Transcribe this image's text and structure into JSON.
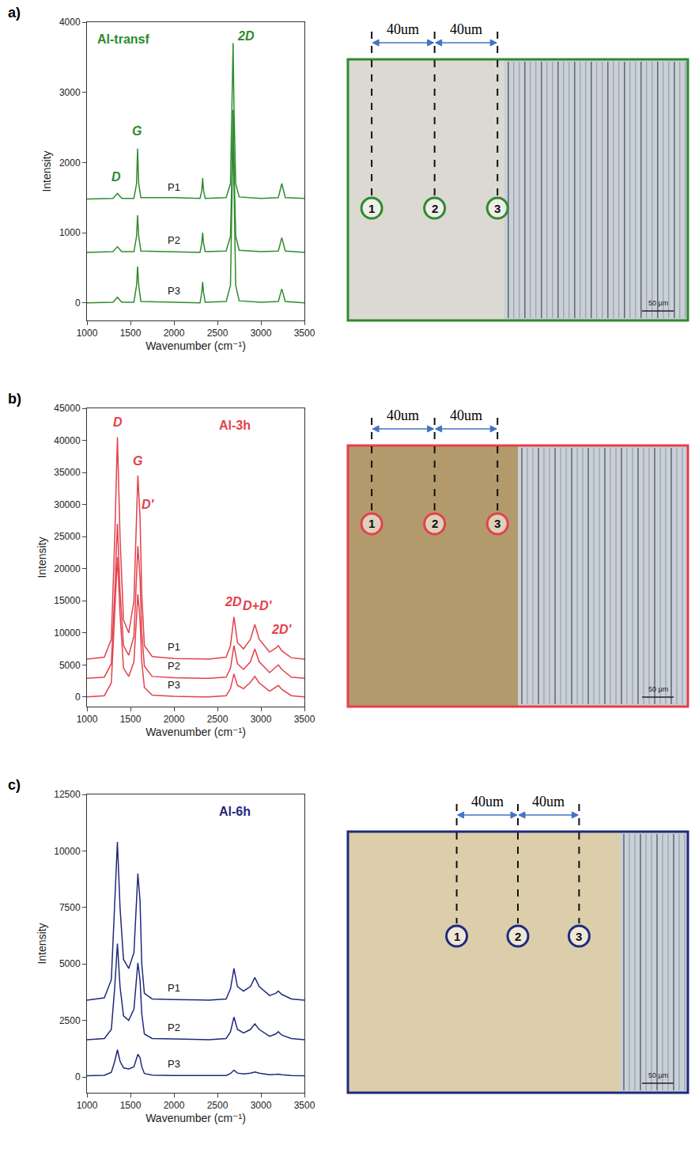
{
  "chart_data": [
    {
      "type": "line",
      "panel": "a)",
      "title": "Al-transf",
      "color": "#2e8b2e",
      "x_label": "Wavenumber (cm⁻¹)",
      "y_label": "Intensity",
      "xlim": [
        1000,
        3500
      ],
      "xticks": [
        1000,
        1500,
        2000,
        2500,
        3000,
        3500
      ],
      "ylim": [
        -250,
        4000
      ],
      "yticks": [
        0,
        1000,
        2000,
        3000,
        4000
      ],
      "x": [
        1000,
        1300,
        1350,
        1400,
        1540,
        1570,
        1582,
        1595,
        1620,
        2000,
        2300,
        2320,
        2330,
        2340,
        2360,
        2600,
        2650,
        2670,
        2680,
        2690,
        2710,
        2750,
        3000,
        3200,
        3240,
        3280,
        3500
      ],
      "series": [
        {
          "name": "P1",
          "values": [
            1480,
            1490,
            1560,
            1490,
            1490,
            1700,
            2200,
            1700,
            1500,
            1500,
            1490,
            1600,
            1780,
            1600,
            1490,
            1500,
            1700,
            2800,
            3700,
            2800,
            1700,
            1510,
            1490,
            1500,
            1700,
            1500,
            1490
          ]
        },
        {
          "name": "P2",
          "values": [
            720,
            730,
            800,
            730,
            730,
            950,
            1250,
            950,
            740,
            730,
            720,
            850,
            1000,
            850,
            730,
            740,
            950,
            2000,
            2750,
            2000,
            950,
            750,
            730,
            740,
            930,
            740,
            720
          ]
        },
        {
          "name": "P3",
          "values": [
            0,
            10,
            80,
            10,
            10,
            250,
            520,
            250,
            20,
            10,
            0,
            150,
            300,
            150,
            10,
            20,
            250,
            1700,
            2650,
            1700,
            250,
            30,
            10,
            20,
            200,
            20,
            0
          ]
        }
      ],
      "annotations": [
        {
          "text": "D",
          "x": 1340,
          "y": 1800
        },
        {
          "text": "G",
          "x": 1570,
          "y": 2450
        },
        {
          "text": "2D",
          "x": 2830,
          "y": 3800
        }
      ],
      "micrograph": {
        "spacing_labels": [
          "40um",
          "40um"
        ],
        "points": [
          "1",
          "2",
          "3"
        ],
        "scale_bar": "50 µm"
      }
    },
    {
      "type": "line",
      "panel": "b)",
      "title": "Al-3h",
      "color": "#e3414b",
      "x_label": "Wavenumber (cm⁻¹)",
      "y_label": "Intensity",
      "xlim": [
        1000,
        3500
      ],
      "xticks": [
        1000,
        1500,
        2000,
        2500,
        3000,
        3500
      ],
      "ylim": [
        -1500,
        45000
      ],
      "yticks": [
        0,
        5000,
        10000,
        15000,
        20000,
        25000,
        30000,
        35000,
        40000,
        45000
      ],
      "x": [
        1000,
        1200,
        1280,
        1320,
        1350,
        1380,
        1420,
        1480,
        1540,
        1570,
        1585,
        1610,
        1630,
        1660,
        1750,
        2000,
        2400,
        2600,
        2650,
        2690,
        2730,
        2800,
        2880,
        2930,
        2980,
        3100,
        3170,
        3200,
        3240,
        3350,
        3500
      ],
      "series": [
        {
          "name": "P1",
          "values": [
            5900,
            6200,
            9000,
            25000,
            40500,
            25000,
            12000,
            10000,
            15000,
            28000,
            34500,
            28000,
            16000,
            8000,
            6300,
            6000,
            5900,
            6200,
            8000,
            12500,
            8500,
            7500,
            9000,
            11300,
            9000,
            7000,
            7600,
            8000,
            7200,
            6100,
            5900
          ]
        },
        {
          "name": "P2",
          "values": [
            2900,
            3100,
            5200,
            16500,
            27000,
            16500,
            8000,
            6500,
            9500,
            18500,
            23500,
            18500,
            10000,
            4800,
            3200,
            3000,
            2900,
            3100,
            4500,
            8000,
            5200,
            4300,
            5500,
            7500,
            5500,
            3800,
            4600,
            5000,
            4300,
            3100,
            2900
          ]
        },
        {
          "name": "P3",
          "values": [
            0,
            200,
            2200,
            13000,
            21800,
            13000,
            4500,
            3200,
            5500,
            12500,
            16000,
            12000,
            5500,
            1500,
            300,
            100,
            0,
            200,
            1300,
            3600,
            1800,
            1300,
            2300,
            3200,
            2200,
            900,
            1500,
            1800,
            1200,
            200,
            0
          ]
        }
      ],
      "annotations": [
        {
          "text": "D",
          "x": 1350,
          "y": 42800
        },
        {
          "text": "G",
          "x": 1582,
          "y": 36800
        },
        {
          "text": "D'",
          "x": 1700,
          "y": 30000
        },
        {
          "text": "2D",
          "x": 2680,
          "y": 14800
        },
        {
          "text": "D+D'",
          "x": 2960,
          "y": 14200
        },
        {
          "text": "2D'",
          "x": 3240,
          "y": 10500
        }
      ],
      "micrograph": {
        "spacing_labels": [
          "40um",
          "40um"
        ],
        "points": [
          "1",
          "2",
          "3"
        ],
        "scale_bar": "50 µm"
      }
    },
    {
      "type": "line",
      "panel": "c)",
      "title": "Al-6h",
      "color": "#1f2a7c",
      "x_label": "Wavenumber (cm⁻¹)",
      "y_label": "Intensity",
      "xlim": [
        1000,
        3500
      ],
      "xticks": [
        1000,
        1500,
        2000,
        2500,
        3000,
        3500
      ],
      "ylim": [
        -700,
        12500
      ],
      "yticks": [
        0,
        2500,
        5000,
        7500,
        10000,
        12500
      ],
      "x": [
        1000,
        1200,
        1280,
        1320,
        1350,
        1380,
        1420,
        1480,
        1540,
        1570,
        1585,
        1610,
        1630,
        1660,
        1750,
        2000,
        2400,
        2600,
        2650,
        2690,
        2730,
        2800,
        2880,
        2930,
        2980,
        3100,
        3170,
        3200,
        3240,
        3350,
        3500
      ],
      "series": [
        {
          "name": "P1",
          "values": [
            3400,
            3500,
            4300,
            7500,
            10400,
            7500,
            5200,
            4800,
            5500,
            7800,
            9000,
            7800,
            5000,
            3700,
            3450,
            3420,
            3400,
            3450,
            3900,
            4800,
            4000,
            3800,
            4000,
            4400,
            4000,
            3600,
            3700,
            3800,
            3650,
            3450,
            3400
          ]
        },
        {
          "name": "P2",
          "values": [
            1650,
            1700,
            2100,
            4000,
            5900,
            4000,
            2700,
            2500,
            3000,
            4300,
            5050,
            4300,
            2800,
            1900,
            1700,
            1680,
            1650,
            1700,
            2000,
            2650,
            2100,
            1950,
            2100,
            2350,
            2100,
            1800,
            1900,
            2000,
            1850,
            1700,
            1650
          ]
        },
        {
          "name": "P3",
          "values": [
            50,
            70,
            200,
            700,
            1200,
            700,
            400,
            350,
            450,
            850,
            1000,
            850,
            450,
            150,
            80,
            60,
            50,
            60,
            150,
            300,
            170,
            130,
            170,
            220,
            170,
            100,
            110,
            120,
            100,
            60,
            50
          ]
        }
      ],
      "annotations": [],
      "micrograph": {
        "spacing_labels": [
          "40um",
          "40um"
        ],
        "points": [
          "1",
          "2",
          "3"
        ],
        "scale_bar": "50 µm"
      }
    }
  ]
}
